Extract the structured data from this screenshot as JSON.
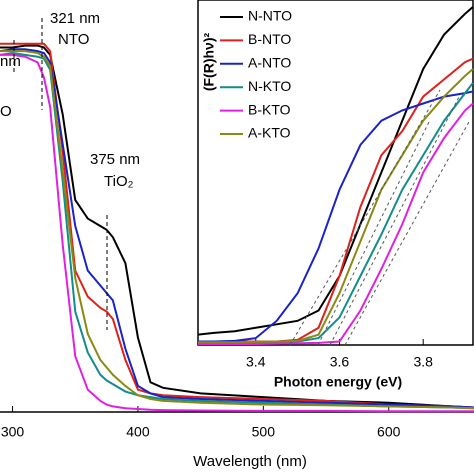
{
  "chart_data": [
    {
      "type": "line",
      "x_label": "Wavelength (nm)",
      "annotations": [
        "321 nm",
        "NTO",
        "nm",
        "O",
        "375 nm",
        "TiO₂"
      ],
      "x": [
        290,
        300,
        310,
        320,
        325,
        330,
        340,
        350,
        360,
        370,
        375,
        380,
        390,
        400,
        410,
        420,
        450,
        500,
        550,
        600,
        650,
        668
      ],
      "xlim": [
        290,
        668
      ],
      "xticks": [
        300,
        400,
        500,
        600
      ],
      "ylim": [
        0,
        1
      ],
      "series": [
        {
          "color": "#000000",
          "values": [
            0.98,
            0.98,
            0.985,
            0.985,
            0.98,
            0.96,
            0.8,
            0.57,
            0.52,
            0.5,
            0.49,
            0.47,
            0.4,
            0.2,
            0.08,
            0.065,
            0.05,
            0.04,
            0.03,
            0.025,
            0.015,
            0.012
          ]
        },
        {
          "color": "#e0201a",
          "values": [
            0.99,
            0.99,
            0.99,
            0.99,
            0.99,
            0.97,
            0.7,
            0.38,
            0.31,
            0.28,
            0.27,
            0.25,
            0.14,
            0.06,
            0.05,
            0.045,
            0.04,
            0.035,
            0.03,
            0.02,
            0.015,
            0.012
          ]
        },
        {
          "color": "#1a22c8",
          "values": [
            0.97,
            0.975,
            0.975,
            0.97,
            0.965,
            0.94,
            0.72,
            0.5,
            0.38,
            0.34,
            0.32,
            0.3,
            0.17,
            0.07,
            0.05,
            0.04,
            0.035,
            0.03,
            0.025,
            0.02,
            0.015,
            0.012
          ]
        },
        {
          "color": "#128c8c",
          "values": [
            0.96,
            0.965,
            0.96,
            0.955,
            0.95,
            0.92,
            0.62,
            0.27,
            0.16,
            0.1,
            0.085,
            0.075,
            0.055,
            0.045,
            0.04,
            0.035,
            0.03,
            0.025,
            0.02,
            0.015,
            0.012,
            0.01
          ]
        },
        {
          "color": "#e020e0",
          "values": [
            0.96,
            0.96,
            0.955,
            0.94,
            0.9,
            0.82,
            0.45,
            0.15,
            0.06,
            0.03,
            0.02,
            0.015,
            0.01,
            0.008,
            0.006,
            0.005,
            0.004,
            0.003,
            0.003,
            0.002,
            0.002,
            0.002
          ]
        },
        {
          "color": "#8a8a12",
          "values": [
            0.97,
            0.97,
            0.97,
            0.965,
            0.955,
            0.93,
            0.65,
            0.36,
            0.21,
            0.14,
            0.12,
            0.1,
            0.07,
            0.045,
            0.035,
            0.03,
            0.025,
            0.02,
            0.018,
            0.015,
            0.012,
            0.01
          ]
        }
      ]
    },
    {
      "type": "line",
      "x_label": "Photon energy (eV)",
      "y_label": "(F(R)hν)²",
      "x": [
        3.262,
        3.3,
        3.35,
        3.4,
        3.45,
        3.5,
        3.55,
        3.6,
        3.65,
        3.7,
        3.75,
        3.8,
        3.85,
        3.9,
        3.919
      ],
      "xlim": [
        3.262,
        3.919
      ],
      "xticks": [
        3.4,
        3.6,
        3.8
      ],
      "ylim": [
        0,
        1
      ],
      "legend": "upper left",
      "series": [
        {
          "name": "N-NTO",
          "color": "#000000",
          "values": [
            0.03,
            0.035,
            0.04,
            0.05,
            0.06,
            0.07,
            0.1,
            0.2,
            0.35,
            0.5,
            0.65,
            0.8,
            0.9,
            0.96,
            0.98
          ]
        },
        {
          "name": "B-NTO",
          "color": "#e0201a",
          "values": [
            0.01,
            0.01,
            0.01,
            0.01,
            0.01,
            0.015,
            0.05,
            0.2,
            0.4,
            0.55,
            0.62,
            0.72,
            0.77,
            0.82,
            0.83
          ]
        },
        {
          "name": "A-NTO",
          "color": "#1a22c8",
          "values": [
            0.01,
            0.01,
            0.012,
            0.02,
            0.07,
            0.15,
            0.28,
            0.45,
            0.58,
            0.65,
            0.68,
            0.7,
            0.72,
            0.73,
            0.735
          ]
        },
        {
          "name": "N-KTO",
          "color": "#128c8c",
          "values": [
            0.005,
            0.005,
            0.005,
            0.006,
            0.008,
            0.01,
            0.02,
            0.08,
            0.2,
            0.32,
            0.45,
            0.55,
            0.65,
            0.73,
            0.76
          ]
        },
        {
          "name": "B-KTO",
          "color": "#e020e0",
          "values": [
            0.003,
            0.003,
            0.003,
            0.003,
            0.004,
            0.005,
            0.006,
            0.01,
            0.1,
            0.22,
            0.35,
            0.5,
            0.6,
            0.68,
            0.7
          ]
        },
        {
          "name": "A-KTO",
          "color": "#8a8a12",
          "values": [
            0.008,
            0.008,
            0.008,
            0.009,
            0.01,
            0.012,
            0.03,
            0.15,
            0.3,
            0.45,
            0.55,
            0.65,
            0.72,
            0.78,
            0.8
          ]
        }
      ]
    }
  ]
}
